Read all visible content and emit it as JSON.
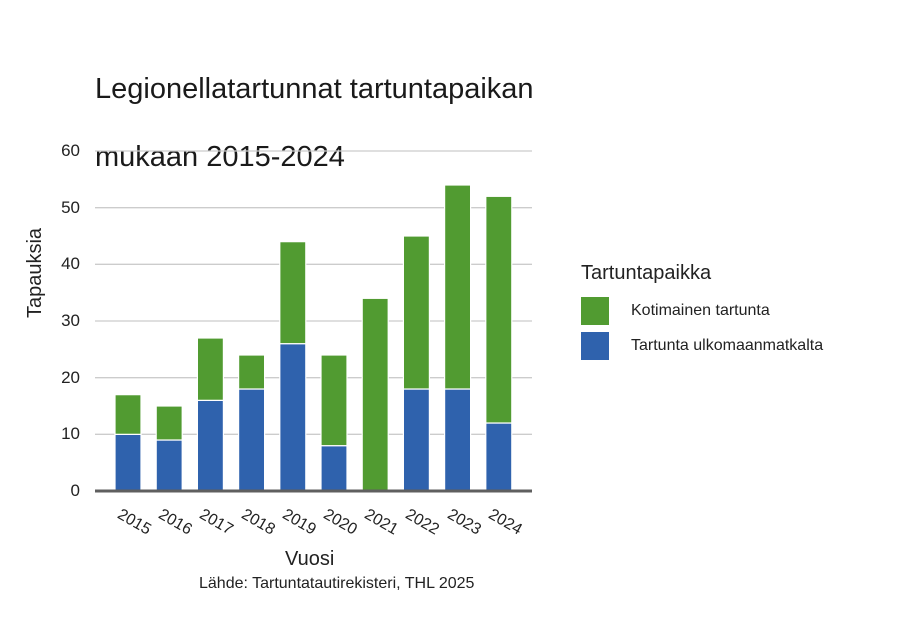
{
  "chart_data": {
    "type": "bar",
    "stacked": true,
    "title": "Legionellatartunnat tartuntapaikan mukaan 2015-2024",
    "title_lines": [
      "Legionellatartunnat tartuntapaikan",
      "mukaan 2015-2024"
    ],
    "xlabel": "Vuosi",
    "ylabel": "Tapauksia",
    "categories": [
      "2015",
      "2016",
      "2017",
      "2018",
      "2019",
      "2020",
      "2021",
      "2022",
      "2023",
      "2024"
    ],
    "series": [
      {
        "name": "Tartunta ulkomaanmatkalta",
        "color": "#2f62ad",
        "values": [
          10,
          9,
          16,
          18,
          26,
          8,
          0,
          18,
          18,
          12
        ]
      },
      {
        "name": "Kotimainen tartunta",
        "color": "#519b31",
        "values": [
          7,
          6,
          11,
          6,
          18,
          16,
          34,
          27,
          36,
          40
        ]
      }
    ],
    "totals": [
      17,
      15,
      27,
      24,
      44,
      24,
      34,
      45,
      54,
      52
    ],
    "ylim": [
      0,
      60
    ],
    "yticks": [
      "0",
      "10",
      "20",
      "30",
      "40",
      "50",
      "60"
    ],
    "grid": true,
    "legend": {
      "title": "Tartuntapaikka",
      "position": "right",
      "entries": [
        {
          "label": "Kotimainen tartunta",
          "color": "#519b31"
        },
        {
          "label": "Tartunta ulkomaanmatkalta",
          "color": "#2f62ad"
        }
      ]
    },
    "source": "Lähde: Tartuntatautirekisteri, THL 2025"
  }
}
